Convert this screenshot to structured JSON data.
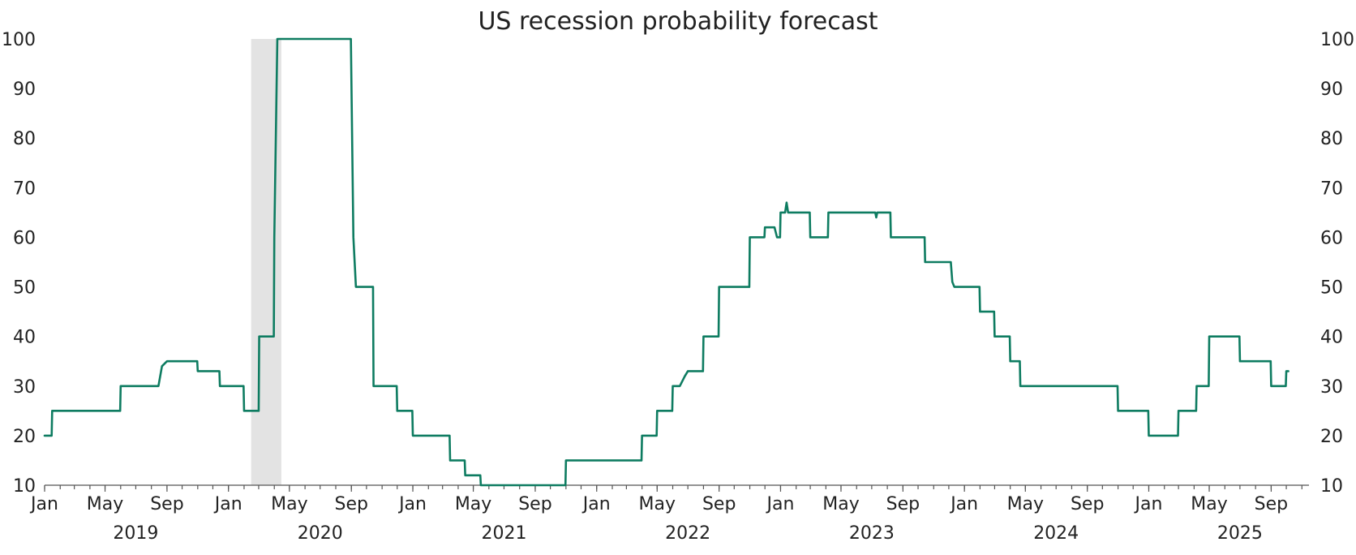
{
  "chart_data": {
    "type": "line",
    "title": "US recession probability forecast",
    "xlabel": "",
    "ylabel": "",
    "ylim": [
      10,
      100
    ],
    "yticks": [
      10,
      20,
      30,
      40,
      50,
      60,
      70,
      80,
      90,
      100
    ],
    "grid": false,
    "legend": "none",
    "colors": {
      "line": "#0e7c61",
      "recession_band": "#e3e3e3"
    },
    "x_range": [
      "2019-01-01",
      "2025-11-15"
    ],
    "x_ticks": [
      {
        "date": "2019-01-01",
        "label": "Jan"
      },
      {
        "date": "2019-05-01",
        "label": "May"
      },
      {
        "date": "2019-09-01",
        "label": "Sep"
      },
      {
        "date": "2020-01-01",
        "label": "Jan"
      },
      {
        "date": "2020-05-01",
        "label": "May"
      },
      {
        "date": "2020-09-01",
        "label": "Sep"
      },
      {
        "date": "2021-01-01",
        "label": "Jan"
      },
      {
        "date": "2021-05-01",
        "label": "May"
      },
      {
        "date": "2021-09-01",
        "label": "Sep"
      },
      {
        "date": "2022-01-01",
        "label": "Jan"
      },
      {
        "date": "2022-05-01",
        "label": "May"
      },
      {
        "date": "2022-09-01",
        "label": "Sep"
      },
      {
        "date": "2023-01-01",
        "label": "Jan"
      },
      {
        "date": "2023-05-01",
        "label": "May"
      },
      {
        "date": "2023-09-01",
        "label": "Sep"
      },
      {
        "date": "2024-01-01",
        "label": "Jan"
      },
      {
        "date": "2024-05-01",
        "label": "May"
      },
      {
        "date": "2024-09-01",
        "label": "Sep"
      },
      {
        "date": "2025-01-01",
        "label": "Jan"
      },
      {
        "date": "2025-05-01",
        "label": "May"
      },
      {
        "date": "2025-09-01",
        "label": "Sep"
      }
    ],
    "year_labels": [
      {
        "label": "2019",
        "date": "2019-07-01"
      },
      {
        "label": "2020",
        "date": "2020-07-01"
      },
      {
        "label": "2021",
        "date": "2021-07-01"
      },
      {
        "label": "2022",
        "date": "2022-07-01"
      },
      {
        "label": "2023",
        "date": "2023-07-01"
      },
      {
        "label": "2024",
        "date": "2024-07-01"
      },
      {
        "label": "2025",
        "date": "2025-07-01"
      }
    ],
    "recession_band": {
      "start": "2020-02-15",
      "end": "2020-04-15"
    },
    "series": [
      {
        "values": [
          {
            "x": "2019-01-01",
            "y": 20
          },
          {
            "x": "2019-01-15",
            "y": 20
          },
          {
            "x": "2019-01-16",
            "y": 25
          },
          {
            "x": "2019-05-31",
            "y": 25
          },
          {
            "x": "2019-06-01",
            "y": 30
          },
          {
            "x": "2019-08-15",
            "y": 30
          },
          {
            "x": "2019-08-22",
            "y": 34
          },
          {
            "x": "2019-09-01",
            "y": 35
          },
          {
            "x": "2019-10-31",
            "y": 35
          },
          {
            "x": "2019-11-01",
            "y": 33
          },
          {
            "x": "2019-12-14",
            "y": 33
          },
          {
            "x": "2019-12-15",
            "y": 30
          },
          {
            "x": "2020-01-31",
            "y": 30
          },
          {
            "x": "2020-02-01",
            "y": 25
          },
          {
            "x": "2020-03-01",
            "y": 25
          },
          {
            "x": "2020-03-02",
            "y": 40
          },
          {
            "x": "2020-03-31",
            "y": 40
          },
          {
            "x": "2020-04-01",
            "y": 60
          },
          {
            "x": "2020-04-07",
            "y": 100
          },
          {
            "x": "2020-08-31",
            "y": 100
          },
          {
            "x": "2020-09-05",
            "y": 60
          },
          {
            "x": "2020-09-10",
            "y": 50
          },
          {
            "x": "2020-10-14",
            "y": 50
          },
          {
            "x": "2020-10-15",
            "y": 30
          },
          {
            "x": "2020-11-30",
            "y": 30
          },
          {
            "x": "2020-12-01",
            "y": 25
          },
          {
            "x": "2020-12-31",
            "y": 25
          },
          {
            "x": "2021-01-01",
            "y": 20
          },
          {
            "x": "2021-03-15",
            "y": 20
          },
          {
            "x": "2021-03-16",
            "y": 15
          },
          {
            "x": "2021-04-14",
            "y": 15
          },
          {
            "x": "2021-04-15",
            "y": 12
          },
          {
            "x": "2021-05-15",
            "y": 12
          },
          {
            "x": "2021-05-16",
            "y": 10
          },
          {
            "x": "2021-10-31",
            "y": 10
          },
          {
            "x": "2021-11-01",
            "y": 15
          },
          {
            "x": "2022-03-31",
            "y": 15
          },
          {
            "x": "2022-04-01",
            "y": 20
          },
          {
            "x": "2022-04-30",
            "y": 20
          },
          {
            "x": "2022-05-01",
            "y": 25
          },
          {
            "x": "2022-05-31",
            "y": 25
          },
          {
            "x": "2022-06-01",
            "y": 30
          },
          {
            "x": "2022-06-15",
            "y": 30
          },
          {
            "x": "2022-06-25",
            "y": 32
          },
          {
            "x": "2022-07-01",
            "y": 33
          },
          {
            "x": "2022-07-31",
            "y": 33
          },
          {
            "x": "2022-08-01",
            "y": 40
          },
          {
            "x": "2022-08-31",
            "y": 40
          },
          {
            "x": "2022-09-01",
            "y": 50
          },
          {
            "x": "2022-10-31",
            "y": 50
          },
          {
            "x": "2022-11-01",
            "y": 60
          },
          {
            "x": "2022-11-30",
            "y": 60
          },
          {
            "x": "2022-12-01",
            "y": 62
          },
          {
            "x": "2022-12-20",
            "y": 62
          },
          {
            "x": "2022-12-25",
            "y": 60
          },
          {
            "x": "2022-12-31",
            "y": 60
          },
          {
            "x": "2023-01-01",
            "y": 65
          },
          {
            "x": "2023-01-10",
            "y": 65
          },
          {
            "x": "2023-01-13",
            "y": 67
          },
          {
            "x": "2023-01-16",
            "y": 65
          },
          {
            "x": "2023-02-28",
            "y": 65
          },
          {
            "x": "2023-03-01",
            "y": 60
          },
          {
            "x": "2023-04-05",
            "y": 60
          },
          {
            "x": "2023-04-06",
            "y": 65
          },
          {
            "x": "2023-07-08",
            "y": 65
          },
          {
            "x": "2023-07-10",
            "y": 64
          },
          {
            "x": "2023-07-12",
            "y": 65
          },
          {
            "x": "2023-08-07",
            "y": 65
          },
          {
            "x": "2023-08-08",
            "y": 60
          },
          {
            "x": "2023-10-14",
            "y": 60
          },
          {
            "x": "2023-10-15",
            "y": 55
          },
          {
            "x": "2023-12-05",
            "y": 55
          },
          {
            "x": "2023-12-08",
            "y": 51
          },
          {
            "x": "2023-12-12",
            "y": 50
          },
          {
            "x": "2024-01-31",
            "y": 50
          },
          {
            "x": "2024-02-01",
            "y": 45
          },
          {
            "x": "2024-02-29",
            "y": 45
          },
          {
            "x": "2024-03-01",
            "y": 40
          },
          {
            "x": "2024-03-31",
            "y": 40
          },
          {
            "x": "2024-04-01",
            "y": 35
          },
          {
            "x": "2024-04-20",
            "y": 35
          },
          {
            "x": "2024-04-21",
            "y": 30
          },
          {
            "x": "2024-10-31",
            "y": 30
          },
          {
            "x": "2024-11-01",
            "y": 25
          },
          {
            "x": "2024-12-31",
            "y": 25
          },
          {
            "x": "2025-01-01",
            "y": 20
          },
          {
            "x": "2025-02-28",
            "y": 20
          },
          {
            "x": "2025-03-01",
            "y": 25
          },
          {
            "x": "2025-04-05",
            "y": 25
          },
          {
            "x": "2025-04-06",
            "y": 30
          },
          {
            "x": "2025-04-30",
            "y": 30
          },
          {
            "x": "2025-05-01",
            "y": 40
          },
          {
            "x": "2025-06-30",
            "y": 40
          },
          {
            "x": "2025-07-01",
            "y": 35
          },
          {
            "x": "2025-08-31",
            "y": 35
          },
          {
            "x": "2025-09-01",
            "y": 30
          },
          {
            "x": "2025-09-30",
            "y": 30
          },
          {
            "x": "2025-10-01",
            "y": 33
          },
          {
            "x": "2025-10-05",
            "y": 33
          }
        ]
      }
    ]
  }
}
